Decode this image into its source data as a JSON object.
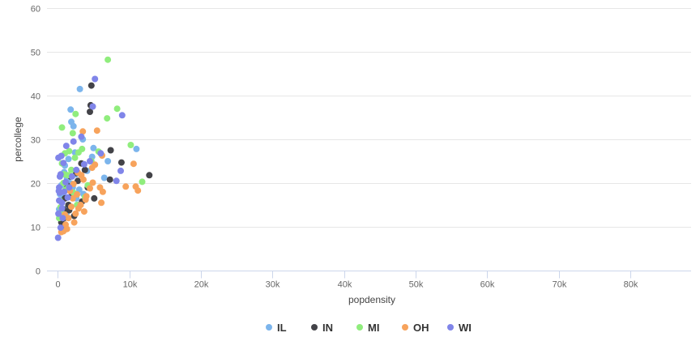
{
  "chart_data": {
    "type": "scatter",
    "xlabel": "popdensity",
    "ylabel": "percollege",
    "xlim": [
      -1500,
      88500
    ],
    "ylim": [
      0,
      60
    ],
    "x_ticks": [
      0,
      10000,
      20000,
      30000,
      40000,
      50000,
      60000,
      70000,
      80000
    ],
    "x_tick_labels": [
      "0",
      "10k",
      "20k",
      "30k",
      "40k",
      "50k",
      "60k",
      "70k",
      "80k"
    ],
    "y_ticks": [
      0,
      10,
      20,
      30,
      40,
      50,
      60
    ],
    "y_tick_labels": [
      "0",
      "10",
      "20",
      "30",
      "40",
      "50",
      "60"
    ],
    "grid": "horizontal",
    "legend_position": "bottom-center",
    "series": [
      {
        "name": "IL",
        "color": "#7cb5ec",
        "points": [
          [
            3100,
            41.5
          ],
          [
            1800,
            36.8
          ],
          [
            1900,
            34
          ],
          [
            2200,
            33
          ],
          [
            5000,
            28
          ],
          [
            11000,
            27.8
          ],
          [
            7000,
            25
          ],
          [
            6500,
            21.2
          ],
          [
            4800,
            26
          ],
          [
            3500,
            30
          ],
          [
            2500,
            22
          ],
          [
            1500,
            25.5
          ],
          [
            3000,
            18.5
          ],
          [
            800,
            17
          ],
          [
            2800,
            15
          ],
          [
            1200,
            13
          ],
          [
            600,
            11.5
          ],
          [
            400,
            16
          ],
          [
            1700,
            20
          ],
          [
            900,
            22.5
          ],
          [
            2100,
            19
          ],
          [
            3600,
            17.5
          ],
          [
            1400,
            14.5
          ],
          [
            700,
            12.5
          ],
          [
            500,
            19.5
          ],
          [
            1000,
            24
          ],
          [
            2400,
            27
          ],
          [
            200,
            14
          ],
          [
            300,
            17.5
          ],
          [
            1300,
            21
          ],
          [
            2600,
            16.5
          ],
          [
            4100,
            22.8
          ]
        ]
      },
      {
        "name": "IN",
        "color": "#434348",
        "points": [
          [
            4700,
            42.3
          ],
          [
            4600,
            37.8
          ],
          [
            4500,
            36.3
          ],
          [
            7400,
            27.5
          ],
          [
            8900,
            24.7
          ],
          [
            12800,
            21.8
          ],
          [
            7300,
            20.8
          ],
          [
            5100,
            16.5
          ],
          [
            3300,
            24.5
          ],
          [
            2800,
            20.5
          ],
          [
            2000,
            17.5
          ],
          [
            1500,
            15
          ],
          [
            900,
            12
          ],
          [
            600,
            10
          ],
          [
            1100,
            9.8
          ],
          [
            2300,
            12.5
          ],
          [
            3400,
            15.8
          ],
          [
            4200,
            19
          ],
          [
            1800,
            21.5
          ],
          [
            1300,
            19.5
          ],
          [
            800,
            14
          ],
          [
            500,
            11
          ],
          [
            2600,
            22.3
          ],
          [
            3800,
            23
          ],
          [
            1000,
            16.5
          ],
          [
            1600,
            13.8
          ]
        ]
      },
      {
        "name": "MI",
        "color": "#90ed7d",
        "points": [
          [
            7000,
            48.2
          ],
          [
            8300,
            37
          ],
          [
            2500,
            35.8
          ],
          [
            6900,
            34.8
          ],
          [
            600,
            32.7
          ],
          [
            2100,
            31.4
          ],
          [
            10200,
            28.7
          ],
          [
            3400,
            27.8
          ],
          [
            5700,
            27.2
          ],
          [
            1600,
            27.3
          ],
          [
            2900,
            27
          ],
          [
            11800,
            20.3
          ],
          [
            4700,
            25
          ],
          [
            1900,
            23
          ],
          [
            800,
            20
          ],
          [
            1100,
            18.5
          ],
          [
            2200,
            17.8
          ],
          [
            2700,
            15
          ],
          [
            3800,
            16.8
          ],
          [
            400,
            14.5
          ],
          [
            200,
            12
          ],
          [
            900,
            22
          ],
          [
            1500,
            19
          ],
          [
            300,
            16
          ],
          [
            600,
            24.5
          ],
          [
            1400,
            21.8
          ],
          [
            4200,
            19.5
          ],
          [
            700,
            13
          ],
          [
            2400,
            25.8
          ],
          [
            1000,
            26.8
          ]
        ]
      },
      {
        "name": "OH",
        "color": "#f7a35c",
        "points": [
          [
            5500,
            32
          ],
          [
            3500,
            31.8
          ],
          [
            6200,
            26.3
          ],
          [
            10600,
            24.4
          ],
          [
            5200,
            24.2
          ],
          [
            4800,
            23.5
          ],
          [
            9500,
            19.2
          ],
          [
            11200,
            18.3
          ],
          [
            10900,
            19.2
          ],
          [
            6300,
            18
          ],
          [
            6100,
            15.5
          ],
          [
            5900,
            19
          ],
          [
            3600,
            20.8
          ],
          [
            4000,
            17
          ],
          [
            3200,
            15
          ],
          [
            3700,
            13.5
          ],
          [
            2500,
            13
          ],
          [
            2900,
            14.2
          ],
          [
            2100,
            16.5
          ],
          [
            1700,
            18.2
          ],
          [
            1500,
            12
          ],
          [
            1100,
            10.5
          ],
          [
            800,
            9
          ],
          [
            1300,
            9.5
          ],
          [
            2300,
            11
          ],
          [
            4500,
            18.8
          ],
          [
            4900,
            20.1
          ],
          [
            2700,
            17.4
          ],
          [
            3300,
            21.8
          ],
          [
            1900,
            14.6
          ],
          [
            1000,
            12.8
          ],
          [
            2200,
            19.8
          ],
          [
            3900,
            16.2
          ],
          [
            2800,
            22.4
          ],
          [
            500,
            8.8
          ]
        ]
      },
      {
        "name": "WI",
        "color": "#8085e9",
        "points": [
          [
            5200,
            43.8
          ],
          [
            4900,
            37.5
          ],
          [
            9000,
            35.5
          ],
          [
            1200,
            28.5
          ],
          [
            2200,
            29.5
          ],
          [
            3300,
            30.6
          ],
          [
            6000,
            26.8
          ],
          [
            4500,
            25
          ],
          [
            3700,
            24.3
          ],
          [
            8800,
            22.8
          ],
          [
            8200,
            20.5
          ],
          [
            100,
            25.8
          ],
          [
            500,
            26.2
          ],
          [
            300,
            21.5
          ],
          [
            200,
            19
          ],
          [
            200,
            16
          ],
          [
            100,
            13
          ],
          [
            50,
            7.5
          ],
          [
            400,
            9.8
          ],
          [
            700,
            12
          ],
          [
            600,
            15.5
          ],
          [
            900,
            18
          ],
          [
            1100,
            20.2
          ],
          [
            1600,
            19
          ],
          [
            2000,
            21.5
          ],
          [
            2600,
            23
          ],
          [
            300,
            17.8
          ],
          [
            800,
            24.6
          ],
          [
            1400,
            16.7
          ],
          [
            400,
            22
          ],
          [
            150,
            18.2
          ],
          [
            600,
            14.2
          ]
        ]
      }
    ]
  }
}
